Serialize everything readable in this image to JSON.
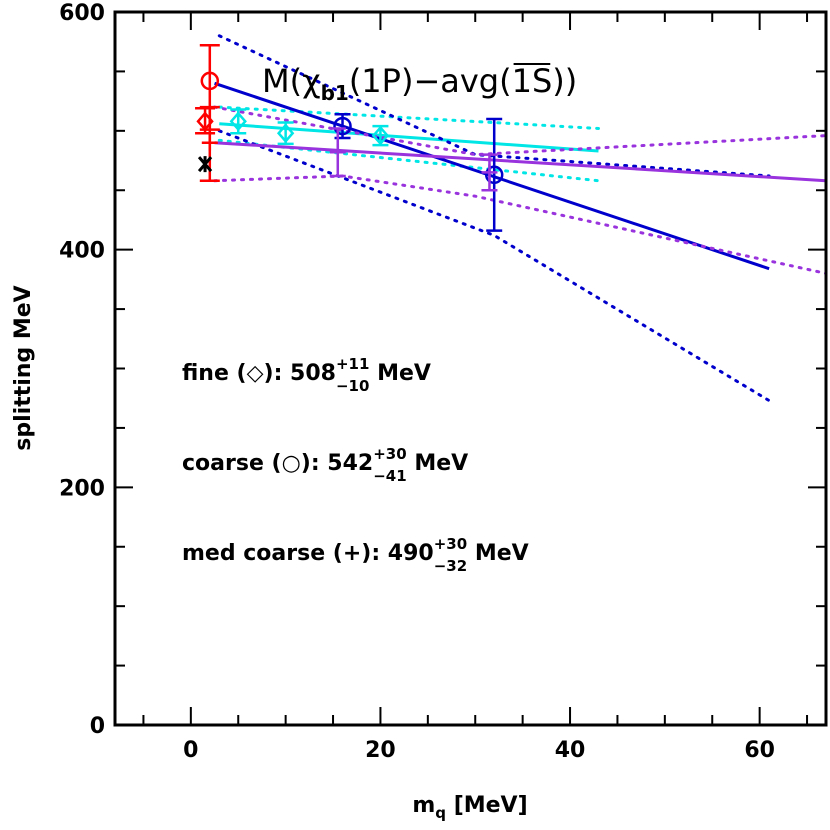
{
  "chart_data": {
    "type": "scatter",
    "title": "M(χb1(1P)−avg(1S))",
    "title_parts": {
      "prefix": "M(χ",
      "sub": "b1",
      "mid": "(1P)−avg(",
      "over": "1S",
      "suffix": "))"
    },
    "xlabel": "m",
    "xlabel_sub": "q",
    "xlabel_unit": " [MeV]",
    "ylabel": "splitting MeV",
    "xlim": [
      -8,
      67
    ],
    "ylim": [
      0,
      600
    ],
    "x_ticks": [
      0,
      20,
      40,
      60
    ],
    "y_ticks": [
      0,
      200,
      400,
      600
    ],
    "x_tick_labels": [
      "0",
      "20",
      "40",
      "60"
    ],
    "y_tick_labels": [
      "0",
      "200",
      "400",
      "600"
    ],
    "colors": {
      "fine": "#00e5e5",
      "coarse": "#0000cc",
      "medium": "#9933dd",
      "extrap": "#ff0000",
      "experiment": "#000000"
    },
    "series": [
      {
        "marker": "diamond",
        "color": "#00e5e5",
        "points": [
          {
            "x": 5.0,
            "y": 508,
            "yerr": 10
          },
          {
            "x": 10.0,
            "y": 498,
            "yerr": 9
          },
          {
            "x": 20.0,
            "y": 496,
            "yerr": 8
          }
        ],
        "fit": [
          [
            3,
            506
          ],
          [
            43,
            483
          ]
        ],
        "band_upper": [
          [
            3,
            520
          ],
          [
            43,
            502
          ]
        ],
        "band_lower": [
          [
            3,
            492
          ],
          [
            43,
            458
          ]
        ]
      },
      {
        "marker": "circle",
        "color": "#0000cc",
        "points": [
          {
            "x": 16.0,
            "y": 504,
            "yerr": 10
          },
          {
            "x": 32.0,
            "y": 463,
            "yerr": 47
          }
        ],
        "fit": [
          [
            2.5,
            540
          ],
          [
            61,
            384
          ]
        ],
        "band_upper": [
          [
            3,
            580
          ],
          [
            30,
            480
          ],
          [
            61,
            462
          ]
        ],
        "band_lower": [
          [
            3,
            500
          ],
          [
            32,
            412
          ],
          [
            61,
            273
          ]
        ]
      },
      {
        "marker": "plus",
        "color": "#9933dd",
        "points": [
          {
            "x": 15.5,
            "y": 482,
            "yerr": 20
          },
          {
            "x": 31.5,
            "y": 465,
            "yerr": 15
          }
        ],
        "fit": [
          [
            2.5,
            490
          ],
          [
            67,
            458
          ]
        ],
        "band_upper": [
          [
            2.5,
            520
          ],
          [
            30,
            480
          ],
          [
            67,
            496
          ]
        ],
        "band_lower": [
          [
            2.5,
            458
          ],
          [
            16,
            462
          ],
          [
            30,
            445
          ],
          [
            67,
            380
          ]
        ]
      }
    ],
    "extrapolated": [
      {
        "marker": "diamond",
        "x": 1.5,
        "y": 508,
        "yerr_plus": 11,
        "yerr_minus": 10,
        "color": "#ff0000"
      },
      {
        "marker": "circle",
        "x": 2.0,
        "y": 542,
        "yerr_plus": 30,
        "yerr_minus": 41,
        "color": "#ff0000"
      },
      {
        "marker": "plus",
        "x": 2.0,
        "y": 490,
        "yerr_plus": 30,
        "yerr_minus": 32,
        "color": "#ff0000"
      }
    ],
    "experiment": {
      "marker": "star",
      "x": 1.5,
      "y": 472,
      "color": "#000000"
    },
    "annotations": [
      {
        "label": "fine (◇): 508",
        "sup": "+11",
        "sub": "−10",
        "unit": " MeV"
      },
      {
        "label": "coarse (○): 542",
        "sup": "+30",
        "sub": "−41",
        "unit": " MeV"
      },
      {
        "label": "med coarse (+): 490",
        "sup": "+30",
        "sub": "−32",
        "unit": " MeV"
      }
    ]
  }
}
